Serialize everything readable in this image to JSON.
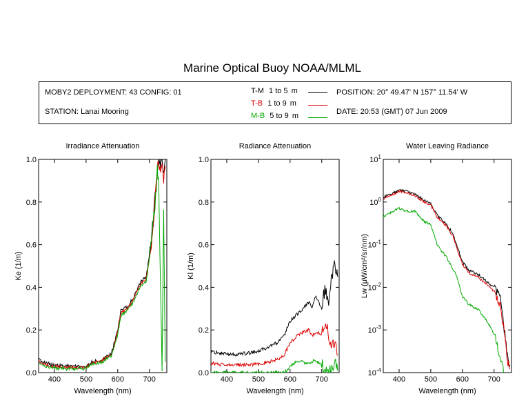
{
  "title": "Marine Optical Buoy NOAA/MLML",
  "info": {
    "deployment": "MOBY2 DEPLOYMENT: 43 CONFIG: 01",
    "station": "STATION: Lanai Mooring",
    "position": "POSITION: 20° 49.47' N   157° 11.54' W",
    "date": "DATE: 20:53 (GMT) 07 Jun 2009"
  },
  "legend": [
    {
      "code": "T-M",
      "range": "1 to 5",
      "unit": "m",
      "color": "#000000"
    },
    {
      "code": "T-B",
      "range": "1 to 9",
      "unit": "m",
      "color": "#dd0000"
    },
    {
      "code": "M-B",
      "range": "5 to 9",
      "unit": "m",
      "color": "#00aa00"
    }
  ],
  "chart_data": [
    {
      "type": "line",
      "title": "Irradiance Attenuation",
      "xlabel": "Wavelength (nm)",
      "ylabel": "Ke  (1/m)",
      "xlim": [
        350,
        755
      ],
      "ylim": [
        0,
        1.0
      ],
      "xticks": [
        "400",
        "500",
        "600",
        "700"
      ],
      "yticks": [
        "0.0",
        "0.2",
        "0.4",
        "0.6",
        "0.8",
        "1.0"
      ],
      "series": [
        {
          "name": "T-M",
          "color": "#000000",
          "x": [
            350,
            370,
            400,
            450,
            500,
            520,
            550,
            580,
            600,
            610,
            630,
            650,
            670,
            690,
            700,
            710,
            720,
            725,
            730,
            735,
            740,
            745,
            750
          ],
          "y": [
            0.06,
            0.045,
            0.035,
            0.03,
            0.03,
            0.05,
            0.06,
            0.09,
            0.2,
            0.29,
            0.31,
            0.35,
            0.42,
            0.45,
            0.55,
            0.68,
            0.85,
            0.95,
            1.0,
            0.98,
            1.0,
            0.97,
            1.0
          ]
        },
        {
          "name": "T-B",
          "color": "#dd0000",
          "x": [
            350,
            370,
            400,
            450,
            500,
            520,
            550,
            580,
            600,
            610,
            630,
            650,
            670,
            690,
            700,
            710,
            720,
            725,
            730,
            735,
            740,
            745,
            750
          ],
          "y": [
            0.05,
            0.038,
            0.028,
            0.024,
            0.025,
            0.045,
            0.055,
            0.085,
            0.19,
            0.28,
            0.3,
            0.34,
            0.41,
            0.44,
            0.54,
            0.67,
            0.84,
            0.94,
            1.0,
            0.95,
            1.0,
            0.9,
            0.97
          ]
        },
        {
          "name": "M-B",
          "color": "#00aa00",
          "x": [
            350,
            370,
            400,
            450,
            500,
            520,
            550,
            580,
            600,
            610,
            630,
            650,
            670,
            690,
            700,
            710,
            720,
            725,
            730,
            735,
            740,
            745,
            750
          ],
          "y": [
            0.04,
            0.03,
            0.02,
            0.018,
            0.02,
            0.04,
            0.05,
            0.08,
            0.18,
            0.27,
            0.29,
            0.33,
            0.4,
            0.43,
            0.53,
            0.66,
            0.82,
            0.96,
            0.85,
            0.4,
            0.0,
            0.75,
            0.05
          ]
        }
      ]
    },
    {
      "type": "line",
      "title": "Radiance Attenuation",
      "xlabel": "Wavelength (nm)",
      "ylabel": "Kl  (1/m)",
      "xlim": [
        350,
        755
      ],
      "ylim": [
        0,
        1.0
      ],
      "xticks": [
        "400",
        "500",
        "600",
        "700"
      ],
      "yticks": [
        "0.0",
        "0.2",
        "0.4",
        "0.6",
        "0.8",
        "1.0"
      ],
      "series": [
        {
          "name": "T-M",
          "color": "#000000",
          "x": [
            350,
            380,
            420,
            460,
            500,
            530,
            560,
            580,
            600,
            620,
            640,
            660,
            670,
            680,
            700,
            710,
            720,
            730,
            740,
            750
          ],
          "y": [
            0.1,
            0.09,
            0.085,
            0.09,
            0.1,
            0.12,
            0.14,
            0.17,
            0.24,
            0.27,
            0.3,
            0.33,
            0.3,
            0.36,
            0.3,
            0.4,
            0.32,
            0.42,
            0.5,
            0.45
          ]
        },
        {
          "name": "T-B",
          "color": "#dd0000",
          "x": [
            350,
            380,
            420,
            460,
            500,
            530,
            560,
            580,
            600,
            620,
            640,
            660,
            670,
            680,
            700,
            710,
            720,
            730,
            740,
            750
          ],
          "y": [
            0.045,
            0.038,
            0.035,
            0.036,
            0.04,
            0.05,
            0.06,
            0.08,
            0.14,
            0.17,
            0.19,
            0.2,
            0.17,
            0.19,
            0.18,
            0.21,
            0.2,
            0.12,
            0.15,
            0.08
          ]
        },
        {
          "name": "M-B",
          "color": "#00aa00",
          "x": [
            350,
            560,
            580,
            590,
            600,
            620,
            640,
            660,
            680,
            700,
            710,
            720,
            730,
            740,
            750
          ],
          "y": [
            0.0,
            0.0,
            0.0,
            0.01,
            0.03,
            0.05,
            0.05,
            0.04,
            0.06,
            0.03,
            0.02,
            0.0,
            0.0,
            0.05,
            0.01
          ]
        }
      ]
    },
    {
      "type": "line",
      "title": "Water Leaving Radiance",
      "xlabel": "Wavelength (nm)",
      "ylabel": "Lw  (μW/cm²/sr/nm)",
      "yscale": "log",
      "xlim": [
        350,
        755
      ],
      "ylim": [
        0.0001,
        10
      ],
      "xticks": [
        "400",
        "500",
        "600",
        "700"
      ],
      "yticks": [
        {
          "base": "10",
          "exp": "-4"
        },
        {
          "base": "10",
          "exp": "-3"
        },
        {
          "base": "10",
          "exp": "-2"
        },
        {
          "base": "10",
          "exp": "-1"
        },
        {
          "base": "10",
          "exp": "0"
        },
        {
          "base": "10",
          "exp": "1"
        }
      ],
      "series": [
        {
          "name": "T-M",
          "color": "#000000",
          "x": [
            350,
            380,
            400,
            420,
            450,
            480,
            500,
            520,
            550,
            570,
            600,
            620,
            650,
            680,
            700,
            720,
            730,
            740,
            750
          ],
          "y": [
            1.3,
            1.6,
            1.9,
            1.8,
            1.5,
            1.1,
            0.9,
            0.5,
            0.3,
            0.18,
            0.04,
            0.025,
            0.02,
            0.013,
            0.01,
            0.005,
            0.0015,
            0.0003,
            0.00015
          ]
        },
        {
          "name": "T-B",
          "color": "#dd0000",
          "x": [
            350,
            380,
            400,
            420,
            450,
            480,
            500,
            520,
            550,
            570,
            600,
            620,
            650,
            680,
            700,
            720,
            730,
            740,
            750
          ],
          "y": [
            1.2,
            1.5,
            1.8,
            1.7,
            1.4,
            1.0,
            0.85,
            0.45,
            0.27,
            0.16,
            0.035,
            0.022,
            0.017,
            0.011,
            0.008,
            0.004,
            0.0012,
            0.00025,
            0.00012
          ]
        },
        {
          "name": "M-B",
          "color": "#00aa00",
          "x": [
            350,
            380,
            400,
            420,
            450,
            480,
            500,
            520,
            550,
            580,
            600,
            620,
            650,
            680,
            700,
            710,
            720,
            730
          ],
          "y": [
            0.45,
            0.6,
            0.7,
            0.62,
            0.6,
            0.35,
            0.3,
            0.1,
            0.05,
            0.02,
            0.006,
            0.004,
            0.003,
            0.0015,
            0.0008,
            0.0004,
            0.0002,
            0.0001
          ]
        }
      ]
    }
  ]
}
